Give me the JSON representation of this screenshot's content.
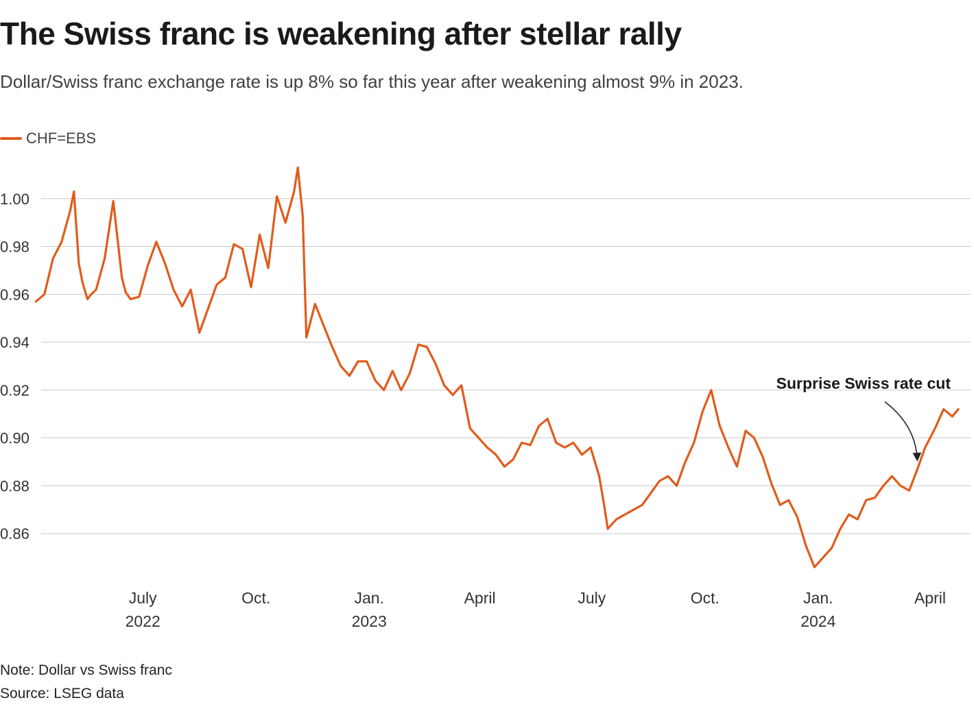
{
  "title": "The Swiss franc is weakening after stellar rally",
  "subtitle": "Dollar/Swiss franc exchange rate is up 8% so far this year after weakening almost 9% in 2023.",
  "note": "Note: Dollar vs Swiss franc",
  "source": "Source: LSEG data",
  "colors": {
    "series": "#e15b1a",
    "grid": "#c9c9c9",
    "text": "#333333"
  },
  "chart_data": {
    "type": "line",
    "series": [
      {
        "name": "CHF=EBS",
        "x": [
          "2022-04-05",
          "2022-04-12",
          "2022-04-19",
          "2022-04-26",
          "2022-05-03",
          "2022-05-06",
          "2022-05-10",
          "2022-05-13",
          "2022-05-17",
          "2022-05-20",
          "2022-05-24",
          "2022-05-31",
          "2022-06-07",
          "2022-06-14",
          "2022-06-17",
          "2022-06-21",
          "2022-06-28",
          "2022-07-05",
          "2022-07-12",
          "2022-07-19",
          "2022-07-26",
          "2022-08-02",
          "2022-08-09",
          "2022-08-16",
          "2022-08-23",
          "2022-08-30",
          "2022-09-06",
          "2022-09-13",
          "2022-09-20",
          "2022-09-27",
          "2022-10-04",
          "2022-10-11",
          "2022-10-18",
          "2022-10-25",
          "2022-11-01",
          "2022-11-04",
          "2022-11-08",
          "2022-11-11",
          "2022-11-18",
          "2022-11-25",
          "2022-12-02",
          "2022-12-09",
          "2022-12-16",
          "2022-12-23",
          "2022-12-30",
          "2023-01-06",
          "2023-01-13",
          "2023-01-20",
          "2023-01-27",
          "2023-02-03",
          "2023-02-10",
          "2023-02-17",
          "2023-02-24",
          "2023-03-03",
          "2023-03-10",
          "2023-03-17",
          "2023-03-24",
          "2023-03-31",
          "2023-04-07",
          "2023-04-14",
          "2023-04-21",
          "2023-04-28",
          "2023-05-05",
          "2023-05-12",
          "2023-05-19",
          "2023-05-26",
          "2023-06-02",
          "2023-06-09",
          "2023-06-16",
          "2023-06-23",
          "2023-06-30",
          "2023-07-07",
          "2023-07-11",
          "2023-07-14",
          "2023-07-21",
          "2023-07-28",
          "2023-08-04",
          "2023-08-11",
          "2023-08-18",
          "2023-08-25",
          "2023-09-01",
          "2023-09-08",
          "2023-09-15",
          "2023-09-22",
          "2023-09-29",
          "2023-10-06",
          "2023-10-13",
          "2023-10-20",
          "2023-10-27",
          "2023-11-03",
          "2023-11-10",
          "2023-11-17",
          "2023-11-24",
          "2023-12-01",
          "2023-12-08",
          "2023-12-15",
          "2023-12-22",
          "2023-12-29",
          "2024-01-05",
          "2024-01-12",
          "2024-01-19",
          "2024-01-26",
          "2024-02-02",
          "2024-02-09",
          "2024-02-16",
          "2024-02-23",
          "2024-03-01",
          "2024-03-08",
          "2024-03-15",
          "2024-03-21",
          "2024-03-28",
          "2024-04-05",
          "2024-04-12",
          "2024-04-19",
          "2024-04-24"
        ],
        "values": [
          0.957,
          0.96,
          0.975,
          0.982,
          0.995,
          1.003,
          0.973,
          0.965,
          0.958,
          0.96,
          0.962,
          0.975,
          0.999,
          0.967,
          0.961,
          0.958,
          0.959,
          0.972,
          0.982,
          0.973,
          0.962,
          0.955,
          0.962,
          0.944,
          0.954,
          0.964,
          0.967,
          0.981,
          0.979,
          0.963,
          0.985,
          0.971,
          1.001,
          0.99,
          1.003,
          1.013,
          0.993,
          0.942,
          0.956,
          0.947,
          0.938,
          0.93,
          0.926,
          0.932,
          0.932,
          0.924,
          0.92,
          0.928,
          0.92,
          0.927,
          0.939,
          0.938,
          0.931,
          0.922,
          0.918,
          0.922,
          0.904,
          0.9,
          0.896,
          0.893,
          0.888,
          0.891,
          0.898,
          0.897,
          0.905,
          0.908,
          0.898,
          0.896,
          0.898,
          0.893,
          0.896,
          0.884,
          0.872,
          0.862,
          0.866,
          0.868,
          0.87,
          0.872,
          0.877,
          0.882,
          0.884,
          0.88,
          0.89,
          0.898,
          0.911,
          0.92,
          0.905,
          0.896,
          0.888,
          0.903,
          0.9,
          0.892,
          0.881,
          0.872,
          0.874,
          0.867,
          0.855,
          0.846,
          0.85,
          0.854,
          0.862,
          0.868,
          0.866,
          0.874,
          0.875,
          0.88,
          0.884,
          0.88,
          0.878,
          0.886,
          0.896,
          0.904,
          0.912,
          0.909,
          0.912
        ]
      }
    ],
    "x_ticks": [
      {
        "date": "2022-07-01",
        "label": "July",
        "year": "2022"
      },
      {
        "date": "2022-10-01",
        "label": "Oct.",
        "year": ""
      },
      {
        "date": "2023-01-01",
        "label": "Jan.",
        "year": "2023"
      },
      {
        "date": "2023-04-01",
        "label": "April",
        "year": ""
      },
      {
        "date": "2023-07-01",
        "label": "July",
        "year": ""
      },
      {
        "date": "2023-10-01",
        "label": "Oct.",
        "year": ""
      },
      {
        "date": "2024-01-01",
        "label": "Jan.",
        "year": "2024"
      },
      {
        "date": "2024-04-01",
        "label": "April",
        "year": ""
      }
    ],
    "y_ticks": [
      0.86,
      0.88,
      0.9,
      0.92,
      0.94,
      0.96,
      0.98,
      1.0
    ],
    "y_tick_labels": [
      "0.86",
      "0.88",
      "0.90",
      "0.92",
      "0.94",
      "0.96",
      "0.98",
      "1.00"
    ],
    "ylim": [
      0.84,
      1.02
    ],
    "xlim": [
      "2022-04-01",
      "2024-04-30"
    ],
    "grid": true,
    "legend_position": "top-left",
    "annotation": {
      "text": "Surprise Swiss rate cut",
      "date": "2024-03-21",
      "value": 0.888
    }
  }
}
